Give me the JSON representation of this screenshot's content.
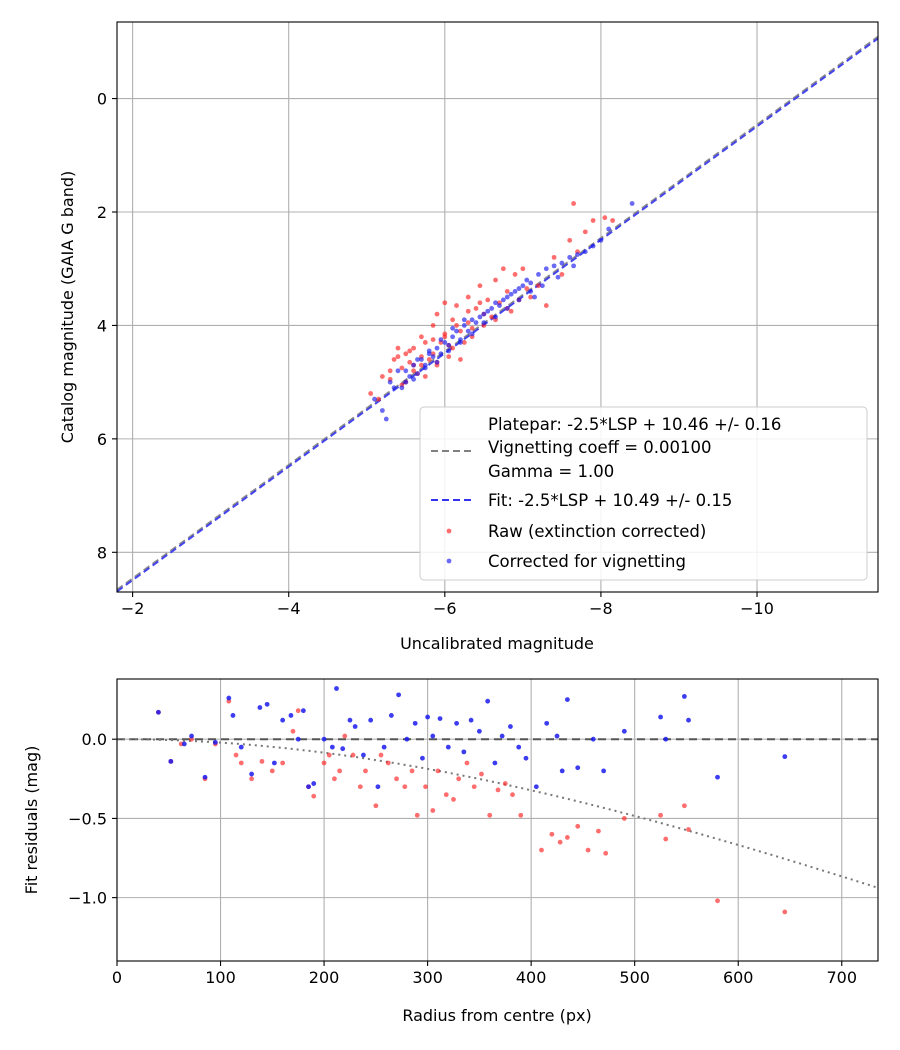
{
  "chart_data": [
    {
      "type": "scatter",
      "name": "calibration",
      "xlabel": "Uncalibrated magnitude",
      "ylabel": "Catalog magnitude (GAIA G band)",
      "xlim": [
        -1.8,
        -11.55
      ],
      "ylim": [
        8.7,
        -1.35
      ],
      "x_inverted": true,
      "y_inverted": true,
      "xticks": [
        -2,
        -4,
        -6,
        -8,
        -10
      ],
      "xtick_labels": [
        "−2",
        "−4",
        "−6",
        "−8",
        "−10"
      ],
      "yticks": [
        0,
        2,
        4,
        6,
        8
      ],
      "ytick_labels": [
        "0",
        "2",
        "4",
        "6",
        "8"
      ],
      "grid": true,
      "legend_position": "lower-right",
      "lines": [
        {
          "name": "platepar",
          "style": "dashed",
          "color": "#808080",
          "slope": 1,
          "intercept": 10.46
        },
        {
          "name": "fit",
          "style": "dashed",
          "color": "#3333ee",
          "slope": 1,
          "intercept": 10.49
        }
      ],
      "legend": [
        {
          "label": "Platepar: -2.5*LSP + 10.46 +/- 0.16",
          "marker": "none"
        },
        {
          "label": "Vignetting coeff = 0.00100",
          "marker": "dash-gray"
        },
        {
          "label": "Gamma = 1.00",
          "marker": "none"
        },
        {
          "label": "Fit: -2.5*LSP + 10.49 +/- 0.15",
          "marker": "dash-blue"
        },
        {
          "label": "Raw (extinction corrected)",
          "marker": "dot-red"
        },
        {
          "label": "Corrected for vignetting",
          "marker": "dot-blue"
        }
      ],
      "series": [
        {
          "name": "Raw (extinction corrected)",
          "color": "#ff2020",
          "x": [
            -5.05,
            -5.15,
            -5.2,
            -5.3,
            -5.35,
            -5.4,
            -5.45,
            -5.5,
            -5.5,
            -5.55,
            -5.6,
            -5.6,
            -5.65,
            -5.7,
            -5.7,
            -5.75,
            -5.8,
            -5.85,
            -5.85,
            -5.9,
            -5.9,
            -5.95,
            -6.0,
            -6.0,
            -6.05,
            -6.1,
            -6.1,
            -6.15,
            -6.2,
            -6.25,
            -6.3,
            -6.3,
            -6.35,
            -6.4,
            -6.45,
            -6.5,
            -6.55,
            -6.6,
            -6.65,
            -6.7,
            -6.75,
            -6.8,
            -6.85,
            -6.9,
            -7.0,
            -7.1,
            -7.2,
            -7.3,
            -7.4,
            -7.5,
            -7.6,
            -7.65,
            -7.7,
            -7.8,
            -7.9,
            -8.05,
            -8.15,
            -5.3,
            -5.45,
            -5.6,
            -5.75,
            -5.9,
            -6.05,
            -6.2,
            -6.35,
            -6.5,
            -6.65,
            -6.8,
            -6.95,
            -7.05,
            -5.4,
            -5.55,
            -5.7,
            -5.85,
            -6.0,
            -6.15,
            -6.3,
            -6.45
          ],
          "y": [
            5.2,
            5.3,
            4.9,
            4.8,
            4.6,
            4.4,
            4.75,
            4.5,
            5.0,
            4.45,
            4.7,
            4.4,
            4.85,
            4.55,
            4.2,
            4.3,
            4.6,
            4.0,
            4.5,
            3.8,
            4.7,
            4.3,
            3.6,
            4.15,
            4.55,
            3.9,
            4.4,
            3.65,
            4.1,
            4.3,
            3.5,
            3.95,
            4.2,
            3.7,
            3.3,
            4.0,
            3.55,
            3.85,
            3.2,
            3.6,
            3.0,
            3.4,
            3.75,
            3.1,
            3.0,
            3.5,
            3.3,
            3.65,
            2.8,
            3.1,
            2.5,
            1.85,
            2.7,
            2.35,
            2.15,
            2.1,
            2.15,
            4.95,
            5.05,
            4.8,
            4.9,
            4.65,
            4.35,
            4.6,
            4.05,
            3.8,
            3.9,
            3.7,
            3.55,
            3.35,
            4.55,
            4.65,
            4.7,
            4.25,
            4.2,
            4.0,
            3.75,
            3.6
          ]
        },
        {
          "name": "Corrected for vignetting",
          "color": "#1a1aee",
          "x": [
            -5.1,
            -5.2,
            -5.3,
            -5.35,
            -5.4,
            -5.5,
            -5.55,
            -5.6,
            -5.65,
            -5.7,
            -5.75,
            -5.8,
            -5.85,
            -5.9,
            -5.95,
            -6.0,
            -6.05,
            -6.1,
            -6.15,
            -6.2,
            -6.25,
            -6.3,
            -6.35,
            -6.4,
            -6.45,
            -6.5,
            -6.55,
            -6.6,
            -6.65,
            -6.7,
            -6.75,
            -6.8,
            -6.85,
            -6.9,
            -6.95,
            -7.0,
            -7.05,
            -7.1,
            -7.15,
            -7.2,
            -7.3,
            -7.4,
            -7.5,
            -7.6,
            -7.7,
            -7.8,
            -7.9,
            -8.0,
            -8.1,
            -8.4,
            -5.45,
            -5.6,
            -5.75,
            -5.9,
            -6.05,
            -6.2,
            -6.35,
            -6.5,
            -6.65,
            -6.8,
            -6.95,
            -7.1,
            -7.25,
            -7.45,
            -7.65,
            -5.25,
            -5.5,
            -5.65,
            -5.8,
            -5.95,
            -6.1,
            -6.25
          ],
          "y": [
            5.3,
            5.5,
            5.0,
            5.1,
            4.8,
            5.0,
            4.9,
            4.7,
            4.85,
            4.6,
            4.7,
            4.5,
            4.55,
            4.4,
            4.5,
            4.3,
            4.35,
            4.2,
            4.1,
            4.25,
            4.0,
            4.1,
            3.9,
            3.95,
            3.85,
            3.8,
            3.75,
            3.7,
            3.6,
            3.65,
            3.55,
            3.5,
            3.45,
            3.4,
            3.35,
            3.3,
            3.2,
            3.25,
            3.5,
            3.1,
            3.0,
            2.95,
            2.9,
            2.8,
            2.75,
            2.7,
            2.6,
            2.5,
            2.3,
            1.85,
            5.1,
            4.95,
            4.75,
            4.65,
            4.45,
            4.3,
            4.15,
            3.95,
            3.85,
            3.7,
            3.55,
            3.4,
            3.3,
            3.15,
            2.95,
            5.65,
            4.8,
            4.6,
            4.45,
            4.25,
            4.05,
            3.9
          ]
        }
      ]
    },
    {
      "type": "scatter",
      "name": "residuals",
      "xlabel": "Radius from centre (px)",
      "ylabel": "Fit residuals (mag)",
      "xlim": [
        0,
        735
      ],
      "ylim": [
        -1.4,
        0.38
      ],
      "xticks": [
        0,
        100,
        200,
        300,
        400,
        500,
        600,
        700
      ],
      "xtick_labels": [
        "0",
        "100",
        "200",
        "300",
        "400",
        "500",
        "600",
        "700"
      ],
      "yticks": [
        0.0,
        -0.5,
        -1.0
      ],
      "ytick_labels": [
        "0.0",
        "−0.5",
        "−1.0"
      ],
      "grid": true,
      "lines": [
        {
          "name": "zero",
          "style": "dashed",
          "color": "#555555",
          "value": 0
        },
        {
          "name": "vignetting-model",
          "style": "dotted",
          "color": "#777777",
          "coeff": 0.001
        }
      ],
      "series": [
        {
          "name": "Raw (extinction corrected)",
          "color": "#ff2020",
          "x": [
            40,
            52,
            62,
            72,
            85,
            95,
            108,
            115,
            120,
            130,
            140,
            150,
            160,
            170,
            175,
            185,
            190,
            200,
            205,
            210,
            215,
            220,
            228,
            235,
            240,
            250,
            255,
            262,
            270,
            278,
            285,
            290,
            298,
            305,
            310,
            318,
            325,
            330,
            338,
            345,
            352,
            360,
            368,
            375,
            382,
            390,
            410,
            420,
            428,
            435,
            445,
            455,
            465,
            472,
            490,
            525,
            530,
            548,
            552,
            580,
            645
          ],
          "x2": [],
          "y": [
            0.17,
            -0.14,
            -0.03,
            0.0,
            -0.25,
            -0.03,
            0.24,
            -0.1,
            -0.15,
            -0.25,
            -0.14,
            -0.2,
            -0.15,
            0.05,
            0.18,
            -0.3,
            -0.36,
            -0.15,
            -0.1,
            -0.25,
            -0.2,
            0.02,
            -0.1,
            -0.3,
            -0.2,
            -0.42,
            -0.1,
            -0.15,
            -0.25,
            -0.3,
            -0.2,
            -0.48,
            -0.3,
            -0.45,
            -0.2,
            -0.35,
            -0.38,
            -0.25,
            -0.15,
            -0.3,
            -0.22,
            -0.48,
            -0.32,
            -0.28,
            -0.35,
            -0.48,
            -0.7,
            -0.6,
            -0.65,
            -0.62,
            -0.55,
            -0.7,
            -0.58,
            -0.72,
            -0.5,
            -0.48,
            -0.63,
            -0.42,
            -0.57,
            -1.02,
            -1.09
          ]
        },
        {
          "name": "Corrected for vignetting",
          "color": "#1a1aee",
          "x": [
            40,
            52,
            65,
            72,
            85,
            95,
            108,
            112,
            120,
            130,
            138,
            145,
            152,
            160,
            168,
            175,
            180,
            185,
            190,
            200,
            208,
            212,
            218,
            225,
            230,
            238,
            245,
            252,
            258,
            265,
            272,
            280,
            288,
            295,
            300,
            305,
            312,
            320,
            328,
            335,
            342,
            350,
            358,
            365,
            372,
            380,
            388,
            395,
            405,
            415,
            425,
            430,
            435,
            445,
            460,
            470,
            490,
            525,
            530,
            548,
            552,
            580,
            645
          ],
          "y": [
            0.17,
            -0.14,
            -0.03,
            0.02,
            -0.24,
            -0.02,
            0.26,
            0.15,
            -0.05,
            -0.22,
            0.2,
            0.22,
            -0.15,
            0.12,
            0.15,
            0.0,
            0.18,
            -0.3,
            -0.28,
            0.0,
            -0.05,
            0.32,
            -0.06,
            0.12,
            0.08,
            -0.1,
            0.12,
            -0.3,
            -0.05,
            0.15,
            0.28,
            0.0,
            0.1,
            -0.12,
            0.14,
            0.02,
            0.13,
            -0.05,
            0.1,
            -0.08,
            0.12,
            0.05,
            0.24,
            -0.15,
            0.02,
            0.08,
            -0.05,
            -0.12,
            -0.3,
            0.1,
            0.02,
            -0.2,
            0.25,
            -0.18,
            0.0,
            -0.2,
            0.05,
            0.14,
            0.0,
            0.27,
            0.12,
            -0.24,
            -0.11
          ]
        }
      ]
    }
  ]
}
